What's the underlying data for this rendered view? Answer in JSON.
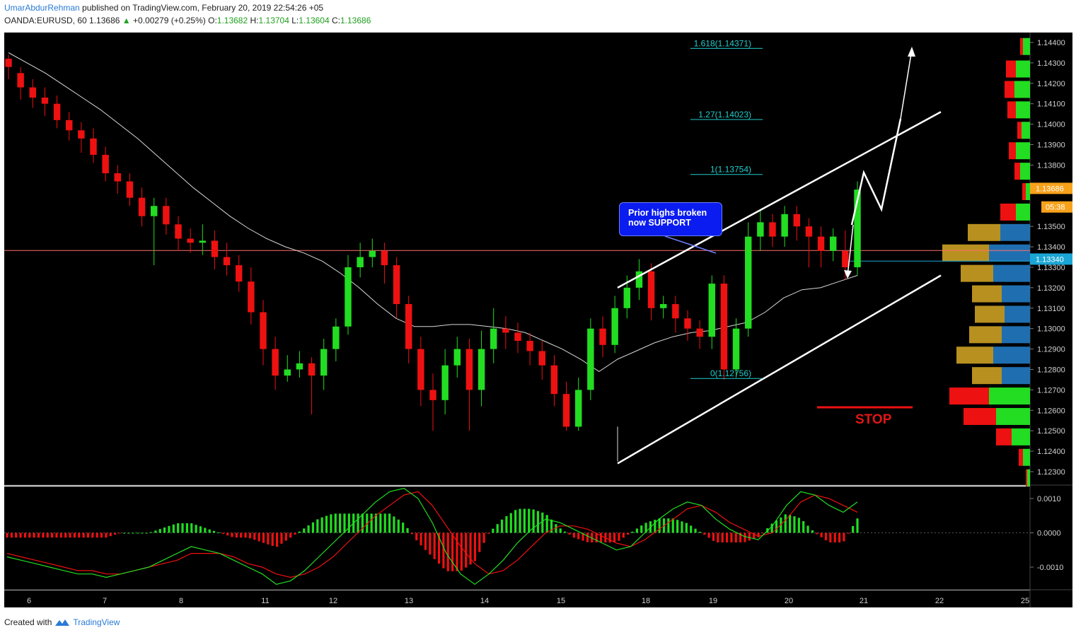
{
  "header": {
    "author": "UmarAbdurRehman",
    "published_text": " published on TradingView.com, February 20, 2019 22:54:26 +05",
    "symbol": "OANDA:EURUSD, 60",
    "last": "1.13686",
    "change_arrow": "▲",
    "change": "+0.00279 (+0.25%)",
    "o_label": "O:",
    "o_value": "1.13682",
    "h_label": "H:",
    "h_value": "1.13704",
    "l_label": "L:",
    "l_value": "1.13604",
    "c_label": "C:",
    "c_value": "1.13686"
  },
  "footer": {
    "created_with": "Created with",
    "brand": "TradingView",
    "logo_icon": "tradingview-logo-icon"
  },
  "annotations": {
    "callout": "Prior highs broken\nnow SUPPORT",
    "stop": "STOP",
    "fib_levels": [
      {
        "label": "1.618(1.14371)",
        "price": 1.14371
      },
      {
        "label": "1.27(1.14023)",
        "price": 1.14023
      },
      {
        "label": "1(1.13754)",
        "price": 1.13754
      },
      {
        "label": "0(1.12756)",
        "price": 1.12756
      }
    ]
  },
  "colors": {
    "background": "#000000",
    "bull": "#22dd22",
    "bear": "#ee1111",
    "ma": "#d8d8d8",
    "fib": "#22cccc",
    "support_line": "#ff6e6e",
    "price_tag": "#f7a21b",
    "cyan_tag": "#1aa6d4",
    "macd": "#22dd22",
    "signal": "#ee1111"
  },
  "chart_data": [
    {
      "type": "candlestick",
      "symbol": "OANDA:EURUSD",
      "interval": "60",
      "title": "",
      "x_ticks": [
        "6",
        "7",
        "8",
        "11",
        "12",
        "13",
        "14",
        "15",
        "18",
        "19",
        "20",
        "21",
        "22",
        "25"
      ],
      "y_ticks": [
        "1.14400",
        "1.14300",
        "1.14200",
        "1.14100",
        "1.14000",
        "1.13900",
        "1.13800",
        "1.13500",
        "1.13400",
        "1.13300",
        "1.13200",
        "1.13100",
        "1.13000",
        "1.12900",
        "1.12800",
        "1.12700",
        "1.12600",
        "1.12500",
        "1.12400",
        "1.12300"
      ],
      "ylim": [
        1.1224,
        1.1447
      ],
      "price_tags": [
        {
          "label": "1.13686",
          "price": 1.13686,
          "color": "#f7a21b"
        },
        {
          "label": "05:38",
          "price": 1.13595,
          "color": "#f7a21b"
        },
        {
          "label": "1.13340",
          "price": 1.1334,
          "color": "#1aa6d4"
        }
      ],
      "support_level": 1.13382,
      "support_level2": 1.1333,
      "stop_level": 1.12615,
      "channel_upper": [
        [
          "16.8",
          1.132
        ],
        [
          "21.7",
          1.1406
        ]
      ],
      "channel_lower": [
        [
          "16.8",
          1.1234
        ],
        [
          "21.7",
          1.1326
        ]
      ],
      "ma_path": [
        1.1435,
        1.143,
        1.1425,
        1.1419,
        1.1413,
        1.1407,
        1.14,
        1.1393,
        1.1385,
        1.1377,
        1.1369,
        1.1362,
        1.1355,
        1.1349,
        1.1344,
        1.134,
        1.1337,
        1.1333,
        1.1327,
        1.132,
        1.1312,
        1.1305,
        1.1301,
        1.1301,
        1.1302,
        1.1302,
        1.1301,
        1.13,
        1.1298,
        1.1294,
        1.129,
        1.1285,
        1.1279,
        1.1285,
        1.1289,
        1.1293,
        1.1296,
        1.1298,
        1.1299,
        1.1301,
        1.1303,
        1.1308,
        1.1315,
        1.1319,
        1.132,
        1.1323,
        1.1326
      ],
      "candles": [
        [
          1.1432,
          1.1428,
          1.1434,
          1.1422
        ],
        [
          1.1425,
          1.1418,
          1.1428,
          1.1412
        ],
        [
          1.1418,
          1.1413,
          1.1422,
          1.1408
        ],
        [
          1.1413,
          1.141,
          1.1418,
          1.1404
        ],
        [
          1.141,
          1.1402,
          1.1414,
          1.1398
        ],
        [
          1.1402,
          1.1397,
          1.1406,
          1.1392
        ],
        [
          1.1397,
          1.1393,
          1.1401,
          1.1386
        ],
        [
          1.1393,
          1.1385,
          1.1398,
          1.1381
        ],
        [
          1.1385,
          1.1376,
          1.1389,
          1.1372
        ],
        [
          1.1376,
          1.1372,
          1.138,
          1.1366
        ],
        [
          1.1372,
          1.1364,
          1.1376,
          1.136
        ],
        [
          1.1364,
          1.1355,
          1.1369,
          1.135
        ],
        [
          1.1355,
          1.136,
          1.1364,
          1.1331
        ],
        [
          1.136,
          1.1351,
          1.1364,
          1.1346
        ],
        [
          1.1351,
          1.1344,
          1.1355,
          1.1338
        ],
        [
          1.1344,
          1.1342,
          1.1349,
          1.1337
        ],
        [
          1.1342,
          1.1343,
          1.1351,
          1.1336
        ],
        [
          1.1343,
          1.1335,
          1.1348,
          1.1329
        ],
        [
          1.1335,
          1.1331,
          1.1342,
          1.1326
        ],
        [
          1.1331,
          1.1323,
          1.1336,
          1.1318
        ],
        [
          1.1323,
          1.1308,
          1.133,
          1.1302
        ],
        [
          1.1308,
          1.129,
          1.1314,
          1.1282
        ],
        [
          1.129,
          1.1277,
          1.1296,
          1.127
        ],
        [
          1.1277,
          1.128,
          1.1287,
          1.1274
        ],
        [
          1.128,
          1.1283,
          1.1289,
          1.1276
        ],
        [
          1.1283,
          1.1277,
          1.1286,
          1.1258
        ],
        [
          1.1277,
          1.129,
          1.1295,
          1.127
        ],
        [
          1.129,
          1.1301,
          1.1305,
          1.1284
        ],
        [
          1.1301,
          1.133,
          1.1336,
          1.1297
        ],
        [
          1.133,
          1.1335,
          1.1342,
          1.1325
        ],
        [
          1.1335,
          1.1338,
          1.1344,
          1.133
        ],
        [
          1.1338,
          1.1331,
          1.1342,
          1.1322
        ],
        [
          1.1331,
          1.1312,
          1.1335,
          1.1305
        ],
        [
          1.1312,
          1.129,
          1.1316,
          1.1283
        ],
        [
          1.129,
          1.127,
          1.1296,
          1.1262
        ],
        [
          1.127,
          1.1265,
          1.1278,
          1.125
        ],
        [
          1.1265,
          1.1282,
          1.129,
          1.1258
        ],
        [
          1.1282,
          1.129,
          1.1296,
          1.1276
        ],
        [
          1.129,
          1.127,
          1.1295,
          1.125
        ],
        [
          1.127,
          1.129,
          1.1299,
          1.1262
        ],
        [
          1.129,
          1.13,
          1.131,
          1.1283
        ],
        [
          1.13,
          1.1298,
          1.1306,
          1.129
        ],
        [
          1.1298,
          1.1294,
          1.1303,
          1.1288
        ],
        [
          1.1294,
          1.1289,
          1.1298,
          1.1282
        ],
        [
          1.1289,
          1.1282,
          1.1294,
          1.1275
        ],
        [
          1.1282,
          1.1268,
          1.1287,
          1.1262
        ],
        [
          1.1268,
          1.1252,
          1.1274,
          1.125
        ],
        [
          1.1252,
          1.127,
          1.1276,
          1.125
        ],
        [
          1.127,
          1.13,
          1.1305,
          1.1265
        ],
        [
          1.13,
          1.1292,
          1.1306,
          1.1286
        ],
        [
          1.1292,
          1.131,
          1.1316,
          1.1288
        ],
        [
          1.131,
          1.132,
          1.1326,
          1.1305
        ],
        [
          1.132,
          1.1328,
          1.1334,
          1.1314
        ],
        [
          1.1328,
          1.131,
          1.1332,
          1.1304
        ],
        [
          1.131,
          1.1312,
          1.1316,
          1.1305
        ],
        [
          1.1312,
          1.1305,
          1.1316,
          1.1298
        ],
        [
          1.1305,
          1.13,
          1.1309,
          1.1294
        ],
        [
          1.13,
          1.1296,
          1.1304,
          1.129
        ],
        [
          1.1296,
          1.1322,
          1.1326,
          1.129
        ],
        [
          1.1322,
          1.128,
          1.1326,
          1.1275
        ],
        [
          1.128,
          1.13,
          1.1305,
          1.1276
        ],
        [
          1.13,
          1.1345,
          1.1352,
          1.1296
        ],
        [
          1.1345,
          1.1352,
          1.1358,
          1.1338
        ],
        [
          1.1352,
          1.1345,
          1.1356,
          1.134
        ],
        [
          1.1345,
          1.1356,
          1.136,
          1.134
        ],
        [
          1.1356,
          1.135,
          1.136,
          1.1343
        ],
        [
          1.135,
          1.1345,
          1.1354,
          1.133
        ],
        [
          1.1345,
          1.1338,
          1.135,
          1.133
        ],
        [
          1.1338,
          1.1345,
          1.1349,
          1.1333
        ],
        [
          1.1338,
          1.133,
          1.1348,
          1.1324
        ],
        [
          1.133,
          1.1368,
          1.1372,
          1.1326
        ]
      ]
    },
    {
      "type": "line",
      "name": "",
      "y_ticks": [
        "0.0010",
        "0.0000",
        "-0.0010"
      ],
      "ylim": [
        -0.0016,
        0.0013
      ],
      "series": [
        {
          "name": "",
          "values": [
            -0.0007,
            -0.0008,
            -0.0009,
            -0.001,
            -0.0011,
            -0.0012,
            -0.0012,
            -0.0013,
            -0.0012,
            -0.0011,
            -0.001,
            -0.0008,
            -0.0006,
            -0.0004,
            -0.0005,
            -0.0006,
            -0.0008,
            -0.001,
            -0.0012,
            -0.0015,
            -0.0014,
            -0.0011,
            -0.0007,
            -0.0003,
            0.0001,
            0.0005,
            0.0009,
            0.0012,
            0.0013,
            0.001,
            0.0003,
            -0.0006,
            -0.0012,
            -0.0015,
            -0.0012,
            -0.0008,
            -0.0003,
            0.0001,
            0.0004,
            0.0003,
            0.0001,
            -0.0001,
            -0.0003,
            -0.0005,
            -0.0004,
            0.0,
            0.0004,
            0.0007,
            0.0009,
            0.0008,
            0.0004,
            0.0001,
            -0.0001,
            -0.0002,
            0.0002,
            0.0008,
            0.0012,
            0.0011,
            0.0008,
            0.0006,
            0.0009
          ]
        },
        {
          "name": "",
          "values": [
            -0.0006,
            -0.0007,
            -0.0008,
            -0.0009,
            -0.001,
            -0.0011,
            -0.0011,
            -0.0012,
            -0.0012,
            -0.0011,
            -0.001,
            -0.0009,
            -0.0008,
            -0.0006,
            -0.0006,
            -0.0006,
            -0.0007,
            -0.0009,
            -0.001,
            -0.0012,
            -0.0013,
            -0.0012,
            -0.001,
            -0.0007,
            -0.0003,
            0.0001,
            0.0005,
            0.0008,
            0.0011,
            0.0012,
            0.0008,
            0.0002,
            -0.0004,
            -0.0009,
            -0.0012,
            -0.0011,
            -0.0008,
            -0.0004,
            0.0,
            0.0002,
            0.0002,
            0.0001,
            -0.0001,
            -0.0003,
            -0.0004,
            -0.0002,
            0.0001,
            0.0004,
            0.0007,
            0.0008,
            0.0006,
            0.0003,
            0.0001,
            -0.0001,
            0.0,
            0.0004,
            0.0009,
            0.0011,
            0.001,
            0.0008,
            0.0006
          ]
        }
      ]
    }
  ]
}
